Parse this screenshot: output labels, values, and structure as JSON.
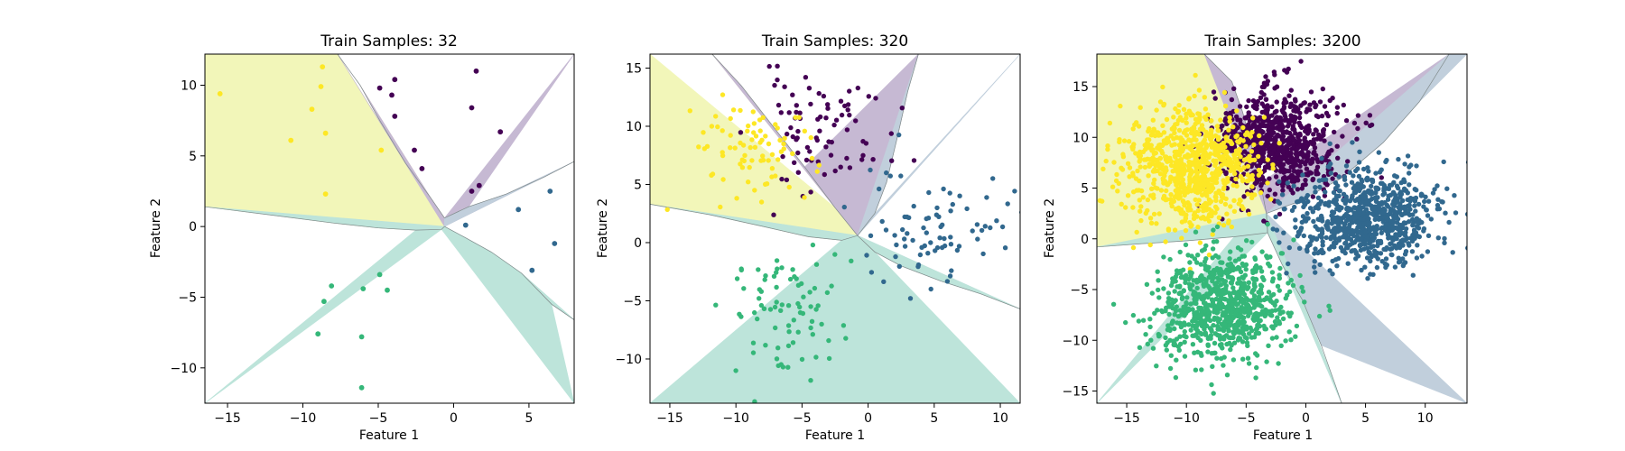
{
  "chart_data": [
    {
      "type": "scatter",
      "title": "Train Samples: 32",
      "xlabel": "Feature 1",
      "ylabel": "Feature 2",
      "xlim": [
        -16.5,
        8.0
      ],
      "ylim": [
        -12.5,
        12.2
      ],
      "xticks": [
        -15,
        -10,
        -5,
        0,
        5
      ],
      "yticks": [
        -10,
        -5,
        0,
        5,
        10
      ],
      "grid": false,
      "legend": "none",
      "region_center": [
        -0.6,
        0.0
      ],
      "region_boundaries": [
        {
          "between": [
            "purple",
            "yellow"
          ],
          "points": [
            [
              -0.6,
              0.6
            ],
            [
              -1.5,
              2.0
            ],
            [
              -3.2,
              4.5
            ],
            [
              -4.9,
              7.5
            ],
            [
              -6.2,
              10.0
            ],
            [
              -7.7,
              12.2
            ]
          ]
        },
        {
          "between": [
            "yellow",
            "green"
          ],
          "points": [
            [
              -0.6,
              0.0
            ],
            [
              -0.8,
              -0.2
            ],
            [
              -2.5,
              -0.25
            ],
            [
              -5.0,
              -0.1
            ],
            [
              -8.0,
              0.25
            ],
            [
              -12.0,
              0.8
            ],
            [
              -16.5,
              1.4
            ]
          ]
        },
        {
          "between": [
            "green",
            "blue"
          ],
          "points": [
            [
              -0.6,
              0.0
            ],
            [
              0.8,
              -0.8
            ],
            [
              2.5,
              -1.8
            ],
            [
              4.5,
              -3.3
            ],
            [
              6.5,
              -5.5
            ],
            [
              8.0,
              -6.6
            ]
          ]
        },
        {
          "between": [
            "blue",
            "purple"
          ],
          "points": [
            [
              -0.6,
              0.6
            ],
            [
              1.0,
              1.4
            ],
            [
              3.5,
              2.3
            ],
            [
              6.0,
              3.5
            ],
            [
              8.0,
              4.6
            ]
          ]
        }
      ],
      "region_corners": {
        "yellow": [
          [
            -16.5,
            12.2
          ]
        ],
        "purple": [
          [
            8.0,
            12.2
          ]
        ],
        "blue": [],
        "green": [
          [
            -16.5,
            -12.5
          ],
          [
            8.0,
            -12.5
          ]
        ]
      },
      "series": [
        {
          "color_key": "purple",
          "points": [
            [
              -3.9,
              10.4
            ],
            [
              -4.9,
              9.8
            ],
            [
              -4.1,
              9.3
            ],
            [
              -3.9,
              7.8
            ],
            [
              1.5,
              11.0
            ],
            [
              1.2,
              8.4
            ],
            [
              3.1,
              6.7
            ],
            [
              -2.6,
              5.4
            ],
            [
              -2.1,
              4.1
            ],
            [
              1.7,
              2.9
            ],
            [
              1.2,
              2.5
            ]
          ]
        },
        {
          "color_key": "yellow",
          "points": [
            [
              -15.5,
              9.4
            ],
            [
              -8.7,
              11.3
            ],
            [
              -8.8,
              9.9
            ],
            [
              -9.4,
              8.3
            ],
            [
              -10.8,
              6.1
            ],
            [
              -8.5,
              6.6
            ],
            [
              -8.5,
              2.3
            ],
            [
              -4.8,
              5.4
            ]
          ]
        },
        {
          "color_key": "blue",
          "points": [
            [
              0.8,
              0.1
            ],
            [
              4.3,
              1.2
            ],
            [
              6.4,
              2.5
            ],
            [
              6.7,
              -1.2
            ],
            [
              5.2,
              -3.1
            ]
          ]
        },
        {
          "color_key": "green",
          "points": [
            [
              -8.1,
              -4.2
            ],
            [
              -8.6,
              -5.3
            ],
            [
              -9.0,
              -7.6
            ],
            [
              -6.0,
              -4.4
            ],
            [
              -4.9,
              -3.4
            ],
            [
              -4.4,
              -4.5
            ],
            [
              -6.1,
              -7.8
            ],
            [
              -6.1,
              -11.4
            ]
          ]
        }
      ]
    },
    {
      "type": "scatter",
      "title": "Train Samples: 320",
      "xlabel": "Feature 1",
      "ylabel": "Feature 2",
      "xlim": [
        -16.5,
        11.5
      ],
      "ylim": [
        -13.8,
        16.2
      ],
      "xticks": [
        -15,
        -10,
        -5,
        0,
        5,
        10
      ],
      "yticks": [
        -10,
        -5,
        0,
        5,
        10,
        15
      ],
      "grid": false,
      "legend": "none",
      "region_center": [
        -0.8,
        0.6
      ],
      "region_boundaries": [
        {
          "between": [
            "purple",
            "yellow"
          ],
          "points": [
            [
              -0.8,
              0.6
            ],
            [
              -2.5,
              3.0
            ],
            [
              -4.8,
              6.5
            ],
            [
              -7.2,
              10.0
            ],
            [
              -9.6,
              13.5
            ],
            [
              -11.8,
              16.2
            ]
          ]
        },
        {
          "between": [
            "yellow",
            "green"
          ],
          "points": [
            [
              -0.8,
              0.6
            ],
            [
              -2.0,
              0.2
            ],
            [
              -4.5,
              0.5
            ],
            [
              -8.0,
              1.4
            ],
            [
              -12.0,
              2.4
            ],
            [
              -16.5,
              3.3
            ]
          ]
        },
        {
          "between": [
            "green",
            "blue"
          ],
          "points": [
            [
              -0.8,
              0.6
            ],
            [
              0.5,
              -0.8
            ],
            [
              2.5,
              -2.0
            ],
            [
              5.5,
              -3.3
            ],
            [
              8.5,
              -4.4
            ],
            [
              11.5,
              -5.7
            ]
          ]
        },
        {
          "between": [
            "blue",
            "purple"
          ],
          "points": [
            [
              -0.8,
              0.6
            ],
            [
              0.5,
              2.5
            ],
            [
              1.4,
              5.2
            ],
            [
              2.2,
              9.0
            ],
            [
              3.0,
              13.0
            ],
            [
              3.8,
              16.2
            ]
          ]
        }
      ],
      "region_corners": {
        "yellow": [
          [
            -16.5,
            16.2
          ]
        ],
        "purple": [],
        "blue": [
          [
            11.5,
            16.2
          ]
        ],
        "green": [
          [
            -16.5,
            -13.8
          ],
          [
            11.5,
            -13.8
          ]
        ]
      },
      "clusters": [
        {
          "color_key": "purple",
          "cx": -3.5,
          "cy": 9.5,
          "sx": 2.6,
          "sy": 2.5,
          "n": 80,
          "seed": 11
        },
        {
          "color_key": "yellow",
          "cx": -9.0,
          "cy": 8.0,
          "sx": 2.4,
          "sy": 2.3,
          "n": 80,
          "seed": 23
        },
        {
          "color_key": "blue",
          "cx": 5.5,
          "cy": 1.5,
          "sx": 2.7,
          "sy": 2.5,
          "n": 80,
          "seed": 37
        },
        {
          "color_key": "green",
          "cx": -6.5,
          "cy": -6.2,
          "sx": 2.3,
          "sy": 2.6,
          "n": 80,
          "seed": 53
        }
      ]
    },
    {
      "type": "scatter",
      "title": "Train Samples: 3200",
      "xlabel": "Feature 1",
      "ylabel": "Feature 2",
      "xlim": [
        -17.5,
        13.5
      ],
      "ylim": [
        -16.2,
        18.2
      ],
      "xticks": [
        -15,
        -10,
        -5,
        0,
        5,
        10
      ],
      "yticks": [
        -15,
        -10,
        -5,
        0,
        5,
        10,
        15
      ],
      "grid": false,
      "legend": "none",
      "region_center": [
        -3.3,
        2.5
      ],
      "region_boundaries": [
        {
          "between": [
            "purple",
            "yellow"
          ],
          "points": [
            [
              -3.3,
              2.5
            ],
            [
              -3.8,
              5.5
            ],
            [
              -4.6,
              9.5
            ],
            [
              -5.3,
              12.5
            ],
            [
              -6.2,
              15.5
            ],
            [
              -8.5,
              18.2
            ]
          ]
        },
        {
          "between": [
            "yellow",
            "green"
          ],
          "points": [
            [
              -3.3,
              2.5
            ],
            [
              -3.2,
              0.6
            ],
            [
              -6.0,
              0.2
            ],
            [
              -10.0,
              -0.2
            ],
            [
              -14.0,
              -0.5
            ],
            [
              -17.5,
              -0.8
            ]
          ]
        },
        {
          "between": [
            "green",
            "blue"
          ],
          "points": [
            [
              -3.3,
              2.5
            ],
            [
              -3.2,
              0.6
            ],
            [
              -2.0,
              -2.5
            ],
            [
              -0.3,
              -6.0
            ],
            [
              1.3,
              -10.5
            ],
            [
              2.5,
              -14.5
            ],
            [
              3.0,
              -16.2
            ]
          ]
        },
        {
          "between": [
            "blue",
            "purple"
          ],
          "points": [
            [
              -3.3,
              2.5
            ],
            [
              -0.5,
              3.7
            ],
            [
              3.0,
              6.0
            ],
            [
              6.5,
              9.5
            ],
            [
              9.5,
              13.5
            ],
            [
              12.0,
              18.2
            ]
          ]
        }
      ],
      "region_corners": {
        "yellow": [
          [
            -17.5,
            18.2
          ]
        ],
        "purple": [],
        "blue": [
          [
            13.5,
            18.2
          ],
          [
            13.5,
            -16.2
          ]
        ],
        "green": [
          [
            -17.5,
            -16.2
          ]
        ]
      },
      "clusters": [
        {
          "color_key": "purple",
          "cx": -2.5,
          "cy": 9.3,
          "sx": 2.6,
          "sy": 2.5,
          "n": 800,
          "seed": 71
        },
        {
          "color_key": "yellow",
          "cx": -9.5,
          "cy": 7.2,
          "sx": 2.7,
          "sy": 2.8,
          "n": 800,
          "seed": 89
        },
        {
          "color_key": "blue",
          "cx": 5.2,
          "cy": 2.0,
          "sx": 3.0,
          "sy": 2.4,
          "n": 800,
          "seed": 97
        },
        {
          "color_key": "green",
          "cx": -6.8,
          "cy": -6.5,
          "sx": 2.7,
          "sy": 2.7,
          "n": 800,
          "seed": 101
        }
      ]
    }
  ],
  "colors": {
    "purple": "#440154",
    "blue": "#31688e",
    "green": "#35b779",
    "yellow": "#fde725",
    "region_purple": "#c6b9d3",
    "region_blue": "#c1cfdc",
    "region_green": "#bde4da",
    "region_yellow": "#f2f6b9",
    "boundary": "#808a8a"
  }
}
